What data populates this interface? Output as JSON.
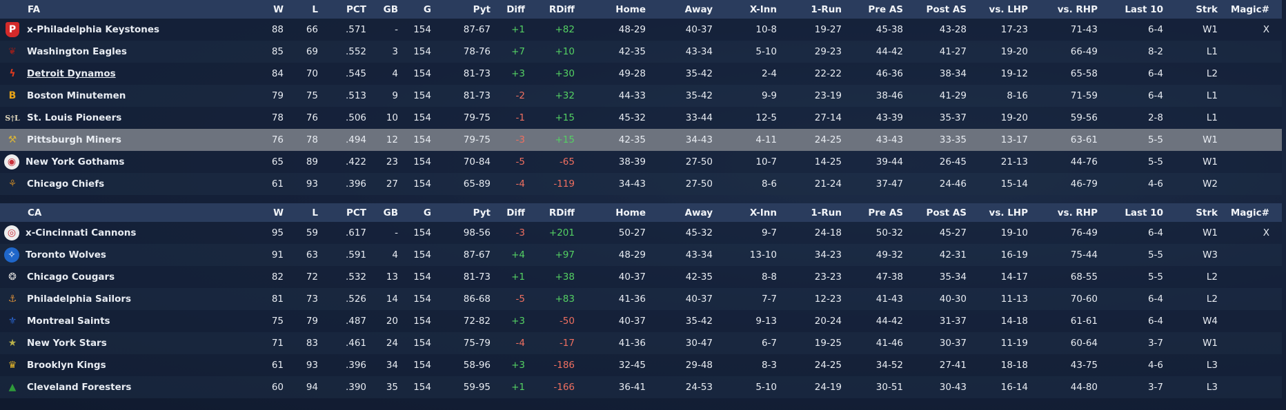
{
  "columns": [
    "W",
    "L",
    "PCT",
    "GB",
    "G",
    "Pyt",
    "Diff",
    "RDiff",
    "Home",
    "Away",
    "X-Inn",
    "1-Run",
    "Pre AS",
    "Post AS",
    "vs. LHP",
    "vs. RHP",
    "Last 10",
    "Strk",
    "Magic#"
  ],
  "leagues": [
    {
      "name": "FA",
      "teams": [
        {
          "name": "x-Philadelphia Keystones",
          "logo_icon": "keystone-p-icon",
          "logo_color": "#d42a2a",
          "w": "88",
          "l": "66",
          "pct": ".571",
          "gb": "-",
          "g": "154",
          "pyt": "87-67",
          "diff": "+1",
          "rdiff": "+82",
          "home": "48-29",
          "away": "40-37",
          "xinn": "10-8",
          "onerun": "19-27",
          "pre_as": "45-38",
          "post_as": "43-28",
          "lhp": "17-23",
          "rhp": "71-43",
          "last10": "6-4",
          "strk": "W1",
          "magic": "X"
        },
        {
          "name": "Washington Eagles",
          "logo_icon": "eagle-icon",
          "logo_color": "#8a1f1f",
          "w": "85",
          "l": "69",
          "pct": ".552",
          "gb": "3",
          "g": "154",
          "pyt": "78-76",
          "diff": "+7",
          "rdiff": "+10",
          "home": "42-35",
          "away": "43-34",
          "xinn": "5-10",
          "onerun": "29-23",
          "pre_as": "44-42",
          "post_as": "41-27",
          "lhp": "19-20",
          "rhp": "66-49",
          "last10": "8-2",
          "strk": "L1",
          "magic": ""
        },
        {
          "name": "Detroit Dynamos",
          "logo_icon": "lightning-bolt-icon",
          "logo_color": "#e03a1e",
          "w": "84",
          "l": "70",
          "pct": ".545",
          "gb": "4",
          "g": "154",
          "pyt": "81-73",
          "diff": "+3",
          "rdiff": "+30",
          "home": "49-28",
          "away": "35-42",
          "xinn": "2-4",
          "onerun": "22-22",
          "pre_as": "46-36",
          "post_as": "38-34",
          "lhp": "19-12",
          "rhp": "65-58",
          "last10": "6-4",
          "strk": "L2",
          "magic": ""
        },
        {
          "name": "Boston Minutemen",
          "logo_icon": "letter-b-icon",
          "logo_color": "#e8a317",
          "w": "79",
          "l": "75",
          "pct": ".513",
          "gb": "9",
          "g": "154",
          "pyt": "81-73",
          "diff": "-2",
          "rdiff": "+32",
          "home": "44-33",
          "away": "35-42",
          "xinn": "9-9",
          "onerun": "23-19",
          "pre_as": "38-46",
          "post_as": "41-29",
          "lhp": "8-16",
          "rhp": "71-59",
          "last10": "6-4",
          "strk": "L1",
          "magic": ""
        },
        {
          "name": "St. Louis Pioneers",
          "logo_icon": "stl-monogram-icon",
          "logo_color": "#e6dcc0",
          "w": "78",
          "l": "76",
          "pct": ".506",
          "gb": "10",
          "g": "154",
          "pyt": "79-75",
          "diff": "-1",
          "rdiff": "+15",
          "home": "45-32",
          "away": "33-44",
          "xinn": "12-5",
          "onerun": "27-14",
          "pre_as": "43-39",
          "post_as": "35-37",
          "lhp": "19-20",
          "rhp": "59-56",
          "last10": "2-8",
          "strk": "L1",
          "magic": ""
        },
        {
          "name": "Pittsburgh Miners",
          "logo_icon": "miner-shield-icon",
          "logo_color": "#d6b23a",
          "w": "76",
          "l": "78",
          "pct": ".494",
          "gb": "12",
          "g": "154",
          "pyt": "79-75",
          "diff": "-3",
          "rdiff": "+15",
          "home": "42-35",
          "away": "34-43",
          "xinn": "4-11",
          "onerun": "24-25",
          "pre_as": "43-43",
          "post_as": "33-35",
          "lhp": "13-17",
          "rhp": "63-61",
          "last10": "5-5",
          "strk": "W1",
          "magic": ""
        },
        {
          "name": "New York Gothams",
          "logo_icon": "gothams-icon",
          "logo_color": "#c9303a",
          "w": "65",
          "l": "89",
          "pct": ".422",
          "gb": "23",
          "g": "154",
          "pyt": "70-84",
          "diff": "-5",
          "rdiff": "-65",
          "home": "38-39",
          "away": "27-50",
          "xinn": "10-7",
          "onerun": "14-25",
          "pre_as": "39-44",
          "post_as": "26-45",
          "lhp": "21-13",
          "rhp": "44-76",
          "last10": "5-5",
          "strk": "W1",
          "magic": ""
        },
        {
          "name": "Chicago Chiefs",
          "logo_icon": "chief-head-icon",
          "logo_color": "#b07a2a",
          "w": "61",
          "l": "93",
          "pct": ".396",
          "gb": "27",
          "g": "154",
          "pyt": "65-89",
          "diff": "-4",
          "rdiff": "-119",
          "home": "34-43",
          "away": "27-50",
          "xinn": "8-6",
          "onerun": "21-24",
          "pre_as": "37-47",
          "post_as": "24-46",
          "lhp": "15-14",
          "rhp": "46-79",
          "last10": "4-6",
          "strk": "W2",
          "magic": ""
        }
      ]
    },
    {
      "name": "CA",
      "teams": [
        {
          "name": "x-Cincinnati Cannons",
          "logo_icon": "cannon-icon",
          "logo_color": "#c9303a",
          "w": "95",
          "l": "59",
          "pct": ".617",
          "gb": "-",
          "g": "154",
          "pyt": "98-56",
          "diff": "-3",
          "rdiff": "+201",
          "home": "50-27",
          "away": "45-32",
          "xinn": "9-7",
          "onerun": "24-18",
          "pre_as": "50-32",
          "post_as": "45-27",
          "lhp": "19-10",
          "rhp": "76-49",
          "last10": "6-4",
          "strk": "W1",
          "magic": "X"
        },
        {
          "name": "Toronto Wolves",
          "logo_icon": "wolf-icon",
          "logo_color": "#1f66c9",
          "w": "91",
          "l": "63",
          "pct": ".591",
          "gb": "4",
          "g": "154",
          "pyt": "87-67",
          "diff": "+4",
          "rdiff": "+97",
          "home": "48-29",
          "away": "43-34",
          "xinn": "13-10",
          "onerun": "34-23",
          "pre_as": "49-32",
          "post_as": "42-31",
          "lhp": "16-19",
          "rhp": "75-44",
          "last10": "5-5",
          "strk": "W3",
          "magic": ""
        },
        {
          "name": "Chicago Cougars",
          "logo_icon": "cougar-icon",
          "logo_color": "#d9d9d9",
          "w": "82",
          "l": "72",
          "pct": ".532",
          "gb": "13",
          "g": "154",
          "pyt": "81-73",
          "diff": "+1",
          "rdiff": "+38",
          "home": "40-37",
          "away": "42-35",
          "xinn": "8-8",
          "onerun": "23-23",
          "pre_as": "47-38",
          "post_as": "35-34",
          "lhp": "14-17",
          "rhp": "68-55",
          "last10": "5-5",
          "strk": "L2",
          "magic": ""
        },
        {
          "name": "Philadelphia Sailors",
          "logo_icon": "anchor-icon",
          "logo_color": "#d08a3a",
          "w": "81",
          "l": "73",
          "pct": ".526",
          "gb": "14",
          "g": "154",
          "pyt": "86-68",
          "diff": "-5",
          "rdiff": "+83",
          "home": "41-36",
          "away": "40-37",
          "xinn": "7-7",
          "onerun": "12-23",
          "pre_as": "41-43",
          "post_as": "40-30",
          "lhp": "11-13",
          "rhp": "70-60",
          "last10": "6-4",
          "strk": "L2",
          "magic": ""
        },
        {
          "name": "Montreal Saints",
          "logo_icon": "fleur-de-lis-icon",
          "logo_color": "#2a62c9",
          "w": "75",
          "l": "79",
          "pct": ".487",
          "gb": "20",
          "g": "154",
          "pyt": "72-82",
          "diff": "+3",
          "rdiff": "-50",
          "home": "40-37",
          "away": "35-42",
          "xinn": "9-13",
          "onerun": "20-24",
          "pre_as": "44-42",
          "post_as": "31-37",
          "lhp": "14-18",
          "rhp": "61-61",
          "last10": "6-4",
          "strk": "W4",
          "magic": ""
        },
        {
          "name": "New York Stars",
          "logo_icon": "star-icon",
          "logo_color": "#b8b04a",
          "w": "71",
          "l": "83",
          "pct": ".461",
          "gb": "24",
          "g": "154",
          "pyt": "75-79",
          "diff": "-4",
          "rdiff": "-17",
          "home": "41-36",
          "away": "30-47",
          "xinn": "6-7",
          "onerun": "19-25",
          "pre_as": "41-46",
          "post_as": "30-37",
          "lhp": "11-19",
          "rhp": "60-64",
          "last10": "3-7",
          "strk": "W1",
          "magic": ""
        },
        {
          "name": "Brooklyn Kings",
          "logo_icon": "crown-icon",
          "logo_color": "#e0b32a",
          "w": "61",
          "l": "93",
          "pct": ".396",
          "gb": "34",
          "g": "154",
          "pyt": "58-96",
          "diff": "+3",
          "rdiff": "-186",
          "home": "32-45",
          "away": "29-48",
          "xinn": "8-3",
          "onerun": "24-25",
          "pre_as": "34-52",
          "post_as": "27-41",
          "lhp": "18-18",
          "rhp": "43-75",
          "last10": "4-6",
          "strk": "L3",
          "magic": ""
        },
        {
          "name": "Cleveland Foresters",
          "logo_icon": "pine-tree-icon",
          "logo_color": "#2f9a3a",
          "w": "60",
          "l": "94",
          "pct": ".390",
          "gb": "35",
          "g": "154",
          "pyt": "59-95",
          "diff": "+1",
          "rdiff": "-166",
          "home": "36-41",
          "away": "24-53",
          "xinn": "5-10",
          "onerun": "24-19",
          "pre_as": "30-51",
          "post_as": "30-43",
          "lhp": "16-14",
          "rhp": "44-80",
          "last10": "3-7",
          "strk": "L3",
          "magic": ""
        }
      ]
    }
  ]
}
